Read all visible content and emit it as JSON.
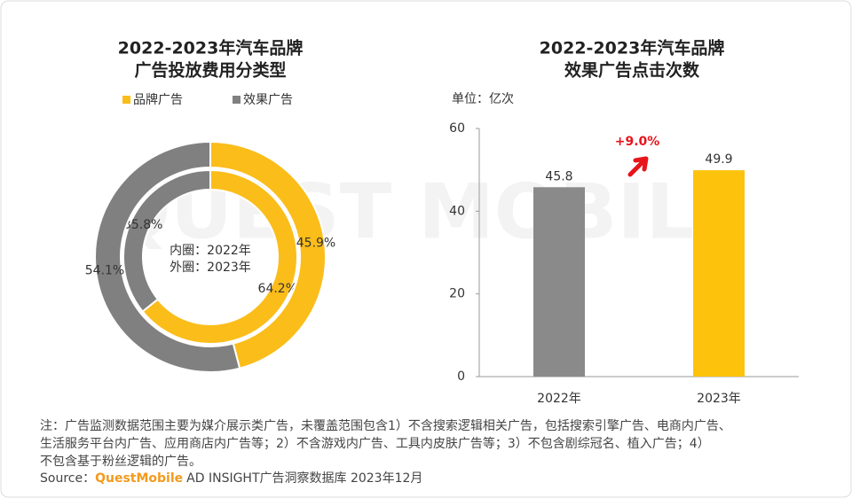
{
  "chart_data": [
    {
      "type": "pie",
      "title": [
        "2022-2023年汽车品牌",
        "广告投放费用分类型"
      ],
      "series": [
        {
          "name": "品牌广告",
          "color": "#fbbd1a",
          "values": [
            64.2,
            45.9
          ],
          "value_labels": [
            "64.2%",
            "45.9%"
          ]
        },
        {
          "name": "效果广告",
          "color": "#808080",
          "values": [
            35.8,
            54.1
          ],
          "value_labels": [
            "35.8%",
            "54.1%"
          ]
        }
      ],
      "annotations": [
        "内圈：2022年",
        "外圈：2023年"
      ]
    },
    {
      "type": "bar",
      "title": [
        "2022-2023年汽车品牌",
        "效果广告点击次数"
      ],
      "unit_label": "单位：亿次",
      "categories": [
        "2022年",
        "2023年"
      ],
      "values": [
        45.8,
        49.9
      ],
      "colors": [
        "#8a8a8a",
        "#fdc30c"
      ],
      "ylim": [
        0,
        60
      ],
      "yticks": [
        0,
        20,
        40,
        60
      ],
      "annotation": "+9.0%"
    }
  ],
  "watermark": "QUEST MOBILE",
  "footer": {
    "note": [
      "注：广告监测数据范围主要为媒介展示类广告，未覆盖范围包含1）不含搜索逻辑相关广告，包括搜索引擎广告、电商内广告、",
      "生活服务平台内广告、应用商店内广告等；2）不含游戏内广告、工具内皮肤广告等；3）不包含剧综冠名、植入广告；4）",
      "不包含基于粉丝逻辑的广告。"
    ],
    "source_label": "Source：",
    "source_brand": "QuestMobile",
    "source_text": "AD INSIGHT广告洞察数据库 2023年12月"
  }
}
